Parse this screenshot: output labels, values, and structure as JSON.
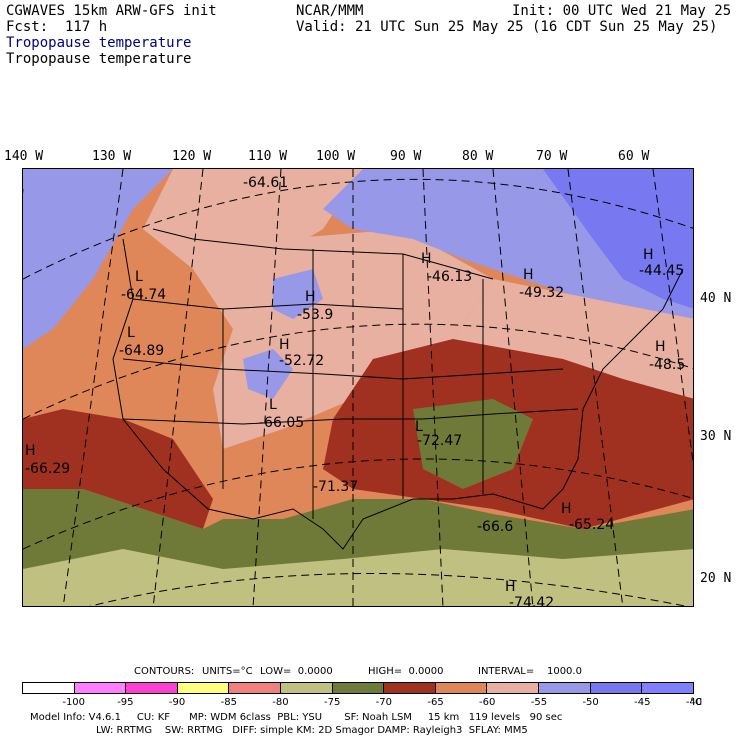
{
  "header": {
    "model": "CGWAVES 15km ARW-GFS init",
    "fcst": "Fcst:  117 h",
    "org": "NCAR/MMM",
    "init": "Init: 00 UTC Wed 21 May 25",
    "valid": "Valid: 21 UTC Sun 25 May 25 (16 CDT Sun 25 May 25)",
    "field_title_1": "Tropopause temperature",
    "field_title_2": "Tropopause temperature"
  },
  "map": {
    "longitude_labels": [
      "140 W",
      "130 W",
      "120 W",
      "110 W",
      "100 W",
      "90 W",
      "80 W",
      "70 W",
      "60 W"
    ],
    "latitude_labels": [
      "40 N",
      "30 N",
      "20 N"
    ],
    "extrema": [
      {
        "type": "",
        "value": "-64.61"
      },
      {
        "type": "L",
        "value": "-64.74"
      },
      {
        "type": "L",
        "value": "-64.89"
      },
      {
        "type": "H",
        "value": "-53.9"
      },
      {
        "type": "H",
        "value": "-52.72"
      },
      {
        "type": "L",
        "value": "-66.05"
      },
      {
        "type": "H",
        "value": "-66.29"
      },
      {
        "type": "",
        "value": "-71.37"
      },
      {
        "type": "L",
        "value": "-72.47"
      },
      {
        "type": "H",
        "value": "-46.13"
      },
      {
        "type": "H",
        "value": "-49.32"
      },
      {
        "type": "H",
        "value": "-44.45"
      },
      {
        "type": "H",
        "value": "-48.5"
      },
      {
        "type": "",
        "value": "-66.6"
      },
      {
        "type": "H",
        "value": "-65.24"
      },
      {
        "type": "H",
        "value": "-74.42"
      }
    ]
  },
  "contour_info": {
    "contours": "CONTOURS:",
    "units": "UNITS=°C",
    "low": "LOW=  0.0000",
    "high": "HIGH=  0.0000",
    "interval": "INTERVAL=    1000.0"
  },
  "colorbar": {
    "colors": [
      "#ffffff",
      "#ff80ff",
      "#ff40d0",
      "#ffff80",
      "#f08080",
      "#c0c080",
      "#6f7a38",
      "#a03020",
      "#e0875a",
      "#e8b0a0",
      "#9898e8",
      "#7878f0",
      "#8080ff"
    ],
    "labels": [
      "-100",
      "-95",
      "-90",
      "-85",
      "-80",
      "-75",
      "-70",
      "-65",
      "-60",
      "-55",
      "-50",
      "-45",
      "-40",
      "°C"
    ]
  },
  "footer": {
    "line1": "Model Info: V4.6.1     CU: KF      MP: WDM 6class  PBL: YSU       SF: Noah LSM     15 km   119 levels   90 sec",
    "line2": "LW: RRTMG    SW: RRTMG   DIFF: simple KM: 2D Smagor DAMP: Rayleigh3  SFLAY: MM5"
  }
}
